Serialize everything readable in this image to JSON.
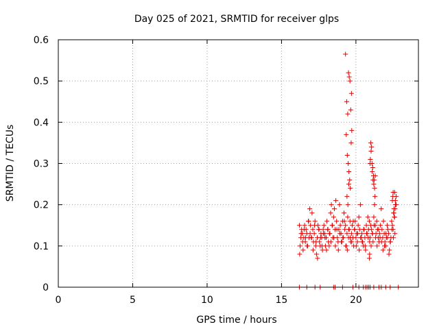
{
  "chart_data": {
    "type": "scatter",
    "title": "Day 025 of 2021, SRMTID for receiver glps",
    "xlabel": "GPS time / hours",
    "ylabel": "SRMTID / TECUs",
    "xlim": [
      0,
      24.2
    ],
    "ylim": [
      0,
      0.6
    ],
    "x_ticks": [
      0,
      5,
      10,
      15,
      20
    ],
    "y_ticks": [
      0,
      0.1,
      0.2,
      0.3,
      0.4,
      0.5,
      0.6
    ],
    "x_tick_labels": [
      "0",
      "5",
      "10",
      "15",
      "20"
    ],
    "y_tick_labels": [
      "0",
      "0.1",
      "0.2",
      "0.3",
      "0.4",
      "0.5",
      "0.6"
    ],
    "grid": true,
    "marker": "+",
    "colors": {
      "marker": "#e00000",
      "grid": "#a0a0a0",
      "axis": "#000000"
    },
    "series": [
      {
        "name": "SRMTID",
        "x": [
          16.2,
          16.25,
          16.3,
          16.35,
          16.4,
          16.45,
          16.5,
          16.55,
          16.6,
          16.65,
          16.7,
          16.75,
          16.8,
          16.85,
          16.9,
          16.95,
          17.0,
          17.05,
          17.1,
          17.15,
          17.2,
          17.25,
          17.3,
          17.35,
          17.4,
          17.45,
          17.5,
          17.55,
          17.6,
          17.65,
          17.7,
          17.75,
          17.8,
          17.85,
          17.9,
          17.95,
          18.0,
          18.05,
          18.1,
          18.15,
          18.2,
          18.25,
          18.3,
          18.35,
          18.4,
          18.45,
          18.5,
          18.55,
          18.6,
          18.65,
          18.7,
          18.75,
          18.8,
          18.85,
          18.9,
          18.95,
          19.0,
          19.05,
          19.1,
          19.15,
          19.2,
          19.25,
          19.3,
          19.35,
          19.4,
          19.45,
          19.5,
          19.55,
          19.6,
          19.65,
          19.7,
          19.75,
          19.8,
          19.85,
          19.9,
          19.95,
          20.0,
          20.05,
          20.1,
          20.15,
          20.2,
          20.25,
          20.3,
          20.35,
          20.4,
          20.45,
          20.5,
          20.55,
          20.6,
          20.65,
          20.7,
          20.75,
          20.8,
          20.85,
          20.9,
          20.95,
          21.0,
          21.05,
          21.1,
          21.15,
          21.2,
          21.25,
          21.3,
          21.35,
          21.4,
          21.45,
          21.5,
          21.55,
          21.6,
          21.65,
          21.7,
          21.75,
          21.8,
          21.85,
          21.9,
          21.95,
          22.0,
          22.05,
          22.1,
          22.15,
          22.2,
          22.25,
          22.3,
          22.35,
          22.4,
          22.45,
          22.5,
          22.55,
          22.6,
          22.65,
          22.7,
          16.22,
          16.32,
          16.42,
          16.52,
          16.62,
          16.72,
          16.82,
          16.92,
          17.02,
          17.12,
          17.22,
          17.32,
          17.42,
          17.52,
          17.62,
          17.72,
          17.82,
          17.92,
          18.02,
          18.12,
          18.22,
          18.32,
          18.42,
          18.52,
          18.62,
          18.72,
          18.82,
          18.92,
          19.02,
          19.12,
          19.22,
          19.32,
          19.42,
          19.52,
          19.62,
          19.72,
          19.82,
          19.92,
          20.02,
          20.12,
          20.22,
          20.32,
          20.42,
          20.52,
          20.62,
          20.72,
          20.82,
          20.92,
          21.02,
          21.12,
          21.22,
          21.32,
          21.42,
          21.52,
          21.62,
          21.72,
          21.82,
          21.92,
          22.02,
          22.12,
          22.22,
          22.32,
          22.42,
          22.52,
          22.62,
          19.3,
          19.38,
          19.45,
          19.5,
          19.55,
          19.6,
          19.65,
          19.7,
          19.35,
          19.42,
          19.48,
          19.53,
          19.58,
          19.62,
          19.68,
          19.72,
          19.4,
          19.46,
          19.52,
          20.9,
          20.95,
          21.0,
          21.05,
          21.1,
          21.15,
          21.2,
          21.25,
          21.3,
          20.92,
          20.97,
          21.02,
          21.08,
          21.13,
          21.18,
          21.22,
          21.28,
          22.45,
          22.5,
          22.55,
          22.6,
          22.65,
          22.7,
          22.48,
          22.53,
          22.58,
          22.63,
          16.2,
          16.7,
          17.25,
          17.6,
          18.5,
          18.6,
          19.1,
          19.8,
          20.2,
          20.5,
          20.65,
          20.75,
          20.85,
          20.95,
          21.2,
          21.55,
          21.7,
          22.0,
          22.3,
          22.85
        ],
        "y": [
          0.15,
          0.1,
          0.12,
          0.14,
          0.13,
          0.09,
          0.12,
          0.15,
          0.11,
          0.14,
          0.13,
          0.1,
          0.16,
          0.12,
          0.19,
          0.15,
          0.12,
          0.18,
          0.14,
          0.11,
          0.13,
          0.16,
          0.1,
          0.08,
          0.12,
          0.15,
          0.14,
          0.11,
          0.1,
          0.13,
          0.12,
          0.09,
          0.14,
          0.15,
          0.13,
          0.1,
          0.12,
          0.16,
          0.14,
          0.11,
          0.1,
          0.13,
          0.18,
          0.2,
          0.15,
          0.12,
          0.17,
          0.19,
          0.14,
          0.21,
          0.16,
          0.12,
          0.11,
          0.14,
          0.2,
          0.15,
          0.13,
          0.11,
          0.16,
          0.12,
          0.18,
          0.14,
          0.15,
          0.1,
          0.13,
          0.17,
          0.12,
          0.14,
          0.16,
          0.11,
          0.13,
          0.15,
          0.12,
          0.1,
          0.14,
          0.16,
          0.12,
          0.13,
          0.11,
          0.15,
          0.17,
          0.14,
          0.2,
          0.12,
          0.13,
          0.11,
          0.1,
          0.14,
          0.12,
          0.09,
          0.15,
          0.13,
          0.17,
          0.14,
          0.16,
          0.12,
          0.15,
          0.14,
          0.13,
          0.11,
          0.17,
          0.2,
          0.15,
          0.13,
          0.16,
          0.14,
          0.12,
          0.11,
          0.13,
          0.15,
          0.19,
          0.14,
          0.12,
          0.16,
          0.13,
          0.11,
          0.1,
          0.12,
          0.15,
          0.14,
          0.13,
          0.09,
          0.11,
          0.12,
          0.16,
          0.15,
          0.14,
          0.18,
          0.17,
          0.2,
          0.22,
          0.08,
          0.13,
          0.11,
          0.14,
          0.12,
          0.1,
          0.16,
          0.13,
          0.12,
          0.09,
          0.15,
          0.11,
          0.07,
          0.14,
          0.12,
          0.1,
          0.13,
          0.12,
          0.09,
          0.14,
          0.13,
          0.11,
          0.15,
          0.12,
          0.1,
          0.14,
          0.09,
          0.13,
          0.11,
          0.12,
          0.16,
          0.1,
          0.09,
          0.14,
          0.12,
          0.11,
          0.16,
          0.14,
          0.1,
          0.13,
          0.09,
          0.12,
          0.11,
          0.14,
          0.1,
          0.13,
          0.12,
          0.11,
          0.1,
          0.13,
          0.15,
          0.12,
          0.1,
          0.14,
          0.12,
          0.11,
          0.09,
          0.1,
          0.13,
          0.12,
          0.08,
          0.11,
          0.14,
          0.12,
          0.13,
          0.565,
          0.45,
          0.42,
          0.52,
          0.51,
          0.5,
          0.43,
          0.47,
          0.37,
          0.32,
          0.3,
          0.28,
          0.26,
          0.24,
          0.35,
          0.38,
          0.22,
          0.2,
          0.25,
          0.07,
          0.3,
          0.35,
          0.34,
          0.28,
          0.26,
          0.25,
          0.24,
          0.27,
          0.08,
          0.31,
          0.33,
          0.3,
          0.29,
          0.27,
          0.26,
          0.22,
          0.21,
          0.23,
          0.19,
          0.23,
          0.21,
          0.2,
          0.22,
          0.18,
          0.17,
          0.19,
          0,
          0,
          0,
          0,
          0,
          0,
          0,
          0,
          0,
          0,
          0,
          0,
          0,
          0,
          0,
          0,
          0,
          0,
          0,
          0
        ]
      }
    ]
  }
}
